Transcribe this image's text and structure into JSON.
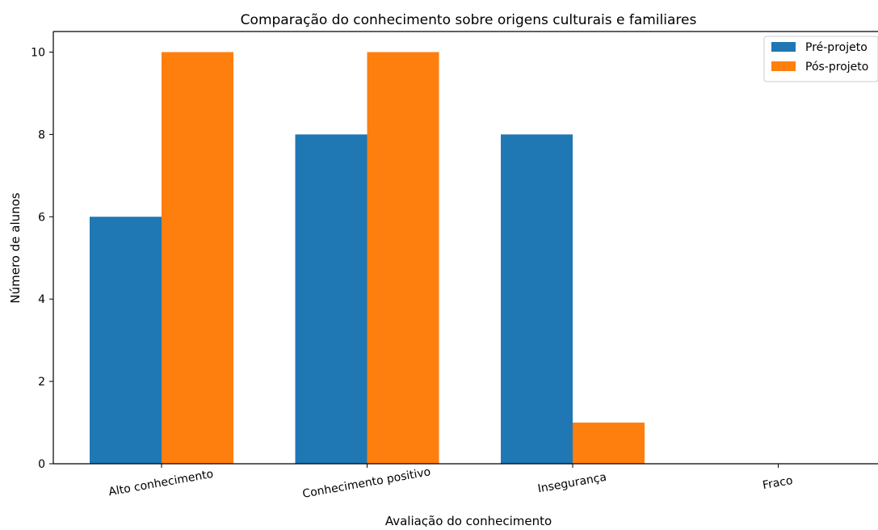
{
  "chart_data": {
    "type": "bar",
    "title": "Comparação do conhecimento sobre origens culturais e familiares",
    "xlabel": "Avaliação do conhecimento",
    "ylabel": "Número de alunos",
    "categories": [
      "Alto conhecimento",
      "Conhecimento positivo",
      "Insegurança",
      "Fraco"
    ],
    "series": [
      {
        "name": "Pré-projeto",
        "values": [
          6,
          8,
          8,
          0
        ],
        "color": "#1f77b4"
      },
      {
        "name": "Pós-projeto",
        "values": [
          10,
          10,
          1,
          0
        ],
        "color": "#ff7f0e"
      }
    ],
    "ylim": [
      0,
      10.5
    ],
    "yticks": [
      "0",
      "2",
      "4",
      "6",
      "8",
      "10"
    ],
    "legend_position": "top-right",
    "grid": false
  }
}
